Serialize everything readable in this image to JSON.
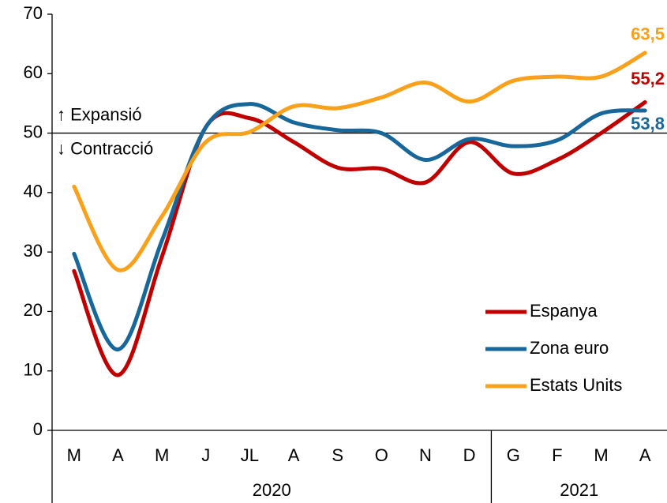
{
  "chart_data": {
    "type": "line",
    "groups": [
      {
        "label": "2020",
        "categories": [
          "M",
          "A",
          "M",
          "J",
          "JL",
          "A",
          "S",
          "O",
          "N",
          "D"
        ]
      },
      {
        "label": "2021",
        "categories": [
          "G",
          "F",
          "M",
          "A"
        ]
      }
    ],
    "series": [
      {
        "name": "Espanya",
        "color": "#c00000",
        "values": [
          26.8,
          9.3,
          29.2,
          51,
          52.5,
          48.5,
          44.2,
          44,
          41.7,
          48.5,
          43.2,
          45.5,
          50,
          55.2
        ],
        "value_labels": [
          null,
          null,
          null,
          null,
          null,
          null,
          null,
          null,
          null,
          null,
          null,
          null,
          null,
          "55,2"
        ]
      },
      {
        "name": "Zona euro",
        "color": "#17679a",
        "values": [
          29.7,
          13.6,
          31.9,
          51,
          54.9,
          51.8,
          50.5,
          50,
          45.5,
          49,
          47.8,
          48.8,
          53.3,
          53.8
        ],
        "value_labels": [
          null,
          null,
          null,
          null,
          null,
          null,
          null,
          null,
          null,
          null,
          null,
          null,
          null,
          "53,8"
        ]
      },
      {
        "name": "Estats Units",
        "color": "#f9a11b",
        "values": [
          41,
          27,
          36,
          48.5,
          50.2,
          54.5,
          54.2,
          56,
          58.5,
          55.3,
          58.8,
          59.5,
          59.5,
          63.5
        ],
        "value_labels": [
          null,
          null,
          null,
          null,
          null,
          null,
          null,
          null,
          null,
          null,
          null,
          null,
          null,
          "63,5"
        ]
      }
    ],
    "ylim": [
      0,
      70
    ],
    "yticks": [
      0,
      10,
      20,
      30,
      40,
      50,
      60,
      70
    ],
    "reference_line": {
      "value": 50,
      "labels": [
        "↑ Expansió",
        "↓ Contracció"
      ]
    },
    "legend": "lower right",
    "grid": false
  }
}
